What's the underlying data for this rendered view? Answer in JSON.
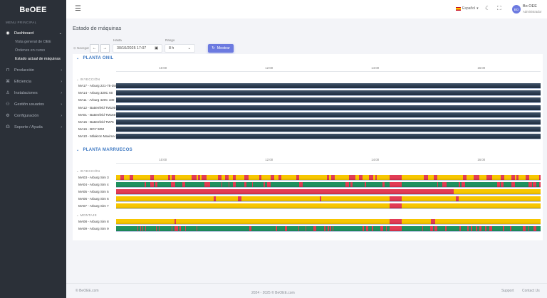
{
  "app": {
    "logo": "BeOEE"
  },
  "sidebar": {
    "menu_title": "MENU PRINCIPAL",
    "items": [
      {
        "label": "Dashboard",
        "icon": "dashboard-icon",
        "active": true,
        "open": true,
        "children": [
          {
            "label": "Vista general de OEE"
          },
          {
            "label": "Órdenes en curso"
          },
          {
            "label": "Estado actual de máquinas",
            "active": true
          }
        ]
      },
      {
        "label": "Producción",
        "icon": "production-icon"
      },
      {
        "label": "Eficiencia",
        "icon": "efficiency-icon"
      },
      {
        "label": "Instalaciones",
        "icon": "installations-icon"
      },
      {
        "label": "Gestión usuarios",
        "icon": "users-icon"
      },
      {
        "label": "Configuración",
        "icon": "gear-icon"
      },
      {
        "label": "Soporte / Ayuda",
        "icon": "support-icon"
      }
    ]
  },
  "topbar": {
    "language": "Español",
    "user_initials": "BO",
    "user_name": "Bo OEE",
    "user_role": "Administrador"
  },
  "page": {
    "title": "Estado de máquinas"
  },
  "filters": {
    "navigate_label": "Navegar",
    "hasta_label": "Hasta",
    "hasta_value": "30/10/2025 17:07",
    "rango_label": "Rango",
    "rango_value": "8 h",
    "show_button": "Mostrar"
  },
  "colors": {
    "running": "#1f9160",
    "idle": "#f7c600",
    "stopped": "#e23c55",
    "no_data": "#2c3d52",
    "accent": "#6c7ae0",
    "plant_title": "#3d78c2"
  },
  "timeline": {
    "start": "09:07",
    "end": "17:07",
    "ticks": [
      "10:00",
      "12:00",
      "14:00",
      "16:00"
    ]
  },
  "plants": [
    {
      "name": "PLANTA ONIL",
      "groups": [
        {
          "name": "INYECCIÓN",
          "machines": [
            {
              "label": "MA17 - Arburg 221-75-350",
              "base": "no_data",
              "segments": []
            },
            {
              "label": "MA14 - Arburg 320C 60",
              "base": "no_data",
              "segments": []
            },
            {
              "label": "MA11 - Arburg 420C 100",
              "base": "no_data",
              "segments": []
            },
            {
              "label": "MA12 - Battenfeld TM100",
              "base": "no_data",
              "segments": []
            },
            {
              "label": "MA01 - Battenfeld TM160",
              "base": "no_data",
              "segments": []
            },
            {
              "label": "MA15 - Battenfeld TM75",
              "base": "no_data",
              "segments": []
            },
            {
              "label": "MA16 - BOY 50M",
              "base": "no_data",
              "segments": []
            },
            {
              "label": "MA10 - Milakron Maxima 200",
              "base": "no_data",
              "segments": []
            }
          ]
        }
      ]
    },
    {
      "name": "PLANTA MARRUECOS",
      "groups": [
        {
          "name": "INYECCIÓN",
          "machines": [
            {
              "label": "MA03 - Arburg Sim 3",
              "base": "idle",
              "segments": [
                [
                  "09:12",
                  "09:16"
                ],
                [
                  "09:22",
                  "09:26"
                ],
                [
                  "09:46",
                  "09:50"
                ],
                [
                  "10:06",
                  "10:08"
                ],
                [
                  "10:10",
                  "10:14"
                ],
                [
                  "10:32",
                  "10:38"
                ],
                [
                  "10:40",
                  "10:42"
                ],
                [
                  "10:44",
                  "10:49"
                ],
                [
                  "11:02",
                  "11:06"
                ],
                [
                  "11:10",
                  "11:14"
                ],
                [
                  "11:19",
                  "11:22"
                ],
                [
                  "11:32",
                  "11:37"
                ],
                [
                  "11:49",
                  "11:51"
                ],
                [
                  "12:02",
                  "12:06"
                ],
                [
                  "12:11",
                  "12:14"
                ],
                [
                  "12:31",
                  "12:34"
                ],
                [
                  "13:05",
                  "13:08"
                ],
                [
                  "13:10",
                  "13:14"
                ],
                [
                  "13:30",
                  "13:38"
                ],
                [
                  "13:42",
                  "13:46"
                ],
                [
                  "13:53",
                  "13:58"
                ],
                [
                  "14:00",
                  "14:02"
                ],
                [
                  "14:16",
                  "14:30"
                ],
                [
                  "14:55",
                  "15:00"
                ],
                [
                  "15:06",
                  "15:10"
                ],
                [
                  "15:39",
                  "15:43"
                ],
                [
                  "15:51",
                  "15:58"
                ],
                [
                  "16:06",
                  "16:12"
                ],
                [
                  "16:22",
                  "16:26"
                ],
                [
                  "16:34",
                  "16:38"
                ],
                [
                  "16:40",
                  "16:42"
                ],
                [
                  "16:50",
                  "16:54"
                ],
                [
                  "17:05",
                  "17:07"
                ]
              ]
            },
            {
              "label": "MA04 - Arburg Sim 4",
              "base": "running",
              "segments": [
                [
                  "09:39",
                  "09:41"
                ],
                [
                  "09:46",
                  "09:50"
                ],
                [
                  "09:51",
                  "09:54"
                ],
                [
                  "10:09",
                  "10:14"
                ],
                [
                  "10:22",
                  "10:25"
                ],
                [
                  "10:47",
                  "10:53"
                ],
                [
                  "11:06",
                  "11:07"
                ],
                [
                  "11:14",
                  "11:15"
                ],
                [
                  "11:19",
                  "11:22"
                ],
                [
                  "11:32",
                  "11:34"
                ],
                [
                  "11:41",
                  "11:42"
                ],
                [
                  "11:54",
                  "11:55"
                ],
                [
                  "11:58",
                  "12:02"
                ],
                [
                  "12:34",
                  "12:38"
                ],
                [
                  "13:26",
                  "13:30"
                ],
                [
                  "13:32",
                  "13:34"
                ],
                [
                  "13:48",
                  "13:50"
                ],
                [
                  "14:08",
                  "14:11"
                ],
                [
                  "14:16",
                  "14:30"
                ],
                [
                  "15:10",
                  "15:11"
                ],
                [
                  "15:16",
                  "15:21"
                ],
                [
                  "15:34",
                  "15:36"
                ],
                [
                  "15:38",
                  "15:42"
                ],
                [
                  "16:18",
                  "16:21"
                ],
                [
                  "16:22",
                  "16:25"
                ],
                [
                  "16:34",
                  "16:38"
                ],
                [
                  "16:53",
                  "16:57"
                ],
                [
                  "16:58",
                  "17:02"
                ],
                [
                  "17:05",
                  "17:07"
                ]
              ]
            },
            {
              "label": "MA05 - Arburg Sim 5",
              "base": "idle",
              "segments": [
                [
                  "09:07",
                  "15:29"
                ]
              ]
            },
            {
              "label": "MA06 - Arburg Sim 6",
              "base": "idle",
              "segments": [
                [
                  "10:57",
                  "11:00"
                ],
                [
                  "11:25",
                  "11:29"
                ],
                [
                  "12:57",
                  "12:59"
                ],
                [
                  "14:16",
                  "14:30"
                ],
                [
                  "15:31",
                  "15:34"
                ]
              ]
            },
            {
              "label": "MA07 - Arburg Sim 7",
              "base": "idle",
              "segments": [
                [
                  "14:16",
                  "14:30"
                ]
              ]
            }
          ]
        },
        {
          "name": "MONTAJE",
          "machines": [
            {
              "label": "MA08 - Arburg Sim 8",
              "base": "idle",
              "segments": [
                [
                  "10:13",
                  "10:15"
                ],
                [
                  "14:16",
                  "14:30"
                ],
                [
                  "15:03",
                  "15:08"
                ]
              ]
            },
            {
              "label": "MA09 - Arburg Sim 9",
              "base": "running",
              "segments": [
                [
                  "09:31",
                  "09:32"
                ],
                [
                  "09:34",
                  "09:35"
                ],
                [
                  "09:37",
                  "09:38"
                ],
                [
                  "09:40",
                  "09:41"
                ],
                [
                  "09:52",
                  "09:53"
                ],
                [
                  "09:55",
                  "09:56"
                ],
                [
                  "10:10",
                  "10:11"
                ],
                [
                  "10:13",
                  "10:17"
                ],
                [
                  "10:19",
                  "10:20"
                ],
                [
                  "10:25",
                  "10:26"
                ],
                [
                  "10:38",
                  "10:39"
                ],
                [
                  "11:38",
                  "11:40"
                ],
                [
                  "12:07",
                  "12:09"
                ],
                [
                  "12:18",
                  "12:20"
                ],
                [
                  "12:33",
                  "12:34"
                ],
                [
                  "12:41",
                  "12:42"
                ],
                [
                  "12:50",
                  "12:53"
                ],
                [
                  "13:02",
                  "13:04"
                ],
                [
                  "13:06",
                  "13:08"
                ],
                [
                  "13:09",
                  "13:10"
                ],
                [
                  "13:12",
                  "13:13"
                ],
                [
                  "13:46",
                  "13:47"
                ],
                [
                  "13:50",
                  "13:52"
                ],
                [
                  "13:56",
                  "13:58"
                ],
                [
                  "14:06",
                  "14:09"
                ],
                [
                  "14:12",
                  "14:13"
                ],
                [
                  "14:16",
                  "14:30"
                ],
                [
                  "14:53",
                  "14:54"
                ],
                [
                  "15:02",
                  "15:05"
                ],
                [
                  "15:07",
                  "15:10"
                ],
                [
                  "15:19",
                  "15:21"
                ],
                [
                  "15:35",
                  "15:37"
                ],
                [
                  "15:44",
                  "15:46"
                ],
                [
                  "15:48",
                  "15:50"
                ],
                [
                  "15:54",
                  "15:55"
                ],
                [
                  "15:58",
                  "16:00"
                ],
                [
                  "16:04",
                  "16:06"
                ],
                [
                  "16:09",
                  "16:12"
                ],
                [
                  "16:24",
                  "16:26"
                ],
                [
                  "16:32",
                  "16:34"
                ],
                [
                  "16:47",
                  "16:50"
                ],
                [
                  "16:53",
                  "16:54"
                ],
                [
                  "16:59",
                  "17:02"
                ]
              ]
            }
          ]
        }
      ]
    }
  ],
  "footer": {
    "left": "© BeOEE.com",
    "center": "2024 - 2025 © BeOEE.com",
    "support": "Support",
    "contact": "Contact Us"
  }
}
